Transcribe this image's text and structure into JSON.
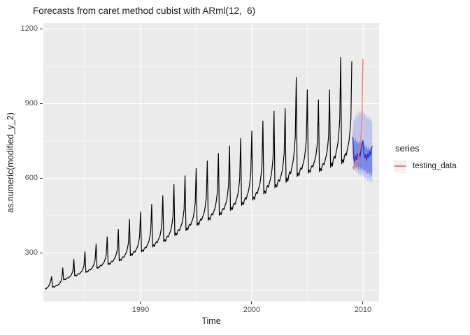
{
  "chart_data": {
    "type": "line",
    "title": "Forecasts from caret method cubist with ARml(12,  6)",
    "xlabel": "Time",
    "ylabel": "as.numeric(modified_y_2)",
    "xlim": [
      1981.26,
      2011.45
    ],
    "ylim": [
      105,
      1223.8
    ],
    "x_tick_values": [
      1990,
      2000,
      2010
    ],
    "x_tick_labels": [
      "1990",
      "2000",
      "2010"
    ],
    "x_minor_ticks": [
      1985,
      1995,
      2005
    ],
    "y_tick_values": [
      300,
      600,
      900,
      1200
    ],
    "y_tick_labels": [
      "300",
      "600",
      "900",
      "1200"
    ],
    "y_minor_ticks": [
      150,
      450,
      750,
      1050
    ],
    "step": 0.0833333,
    "colors": {
      "panel_bg": "#EBEBEB",
      "grid_major": "#FFFFFF",
      "grid_minor": "#FFFFFF",
      "history": "#000000",
      "forecast": "#3333CC",
      "testing_data": "#F8766D",
      "band_outer": "rgba(80,105,230,0.28)",
      "band_inner": "rgba(60,85,225,0.52)"
    },
    "legend": {
      "title": "series",
      "entries": [
        {
          "label": "testing_data",
          "color": "#F8766D"
        }
      ]
    },
    "bands": [
      {
        "name": "prediction-interval-outer",
        "start": 2009.0833,
        "upper": [
          800,
          836,
          828,
          856,
          842,
          870,
          848,
          876,
          856,
          874,
          860,
          872,
          852,
          864,
          842,
          858,
          836,
          852,
          830,
          846,
          824,
          836
        ],
        "lower": [
          700,
          640,
          628,
          640,
          618,
          632,
          610,
          626,
          606,
          622,
          602,
          618,
          598,
          612,
          592,
          606,
          588,
          602,
          584,
          598,
          580,
          592
        ],
        "color": "rgba(80,105,230,0.28)"
      },
      {
        "name": "prediction-interval-inner",
        "start": 2009.0833,
        "upper": [
          788,
          758,
          746,
          764,
          740,
          758,
          736,
          754,
          732,
          750,
          728,
          746,
          724,
          740,
          718,
          736,
          714,
          732,
          710,
          726,
          706,
          720
        ],
        "lower": [
          738,
          654,
          646,
          660,
          638,
          654,
          634,
          650,
          630,
          646,
          626,
          642,
          622,
          638,
          618,
          634,
          614,
          630,
          610,
          626,
          606,
          618
        ],
        "color": "rgba(60,85,225,0.52)"
      }
    ],
    "series": [
      {
        "name": "history",
        "color": "#000000",
        "width": 1.2,
        "start": 1981.4167,
        "values": [
          158,
          155,
          160,
          163,
          168,
          176,
          186,
          205,
          162,
          165,
          162,
          167,
          170,
          168,
          172,
          175,
          179,
          186,
          196,
          240,
          192,
          195,
          193,
          198,
          200,
          199,
          203,
          206,
          210,
          218,
          228,
          275,
          207,
          211,
          208,
          214,
          217,
          215,
          220,
          224,
          229,
          238,
          250,
          305,
          222,
          227,
          223,
          230,
          234,
          232,
          237,
          242,
          248,
          258,
          272,
          335,
          238,
          243,
          239,
          247,
          251,
          248,
          255,
          260,
          266,
          278,
          294,
          365,
          253,
          259,
          254,
          263,
          267,
          265,
          272,
          278,
          285,
          298,
          315,
          395,
          268,
          275,
          270,
          280,
          285,
          282,
          291,
          297,
          306,
          321,
          342,
          435,
          289,
          296,
          290,
          301,
          307,
          303,
          312,
          319,
          328,
          344,
          366,
          465,
          304,
          312,
          306,
          318,
          323,
          320,
          329,
          337,
          347,
          364,
          388,
          495,
          324,
          333,
          326,
          339,
          345,
          341,
          352,
          360,
          370,
          389,
          415,
          530,
          345,
          354,
          347,
          361,
          368,
          364,
          375,
          385,
          396,
          418,
          446,
          575,
          370,
          380,
          372,
          387,
          394,
          390,
          402,
          412,
          424,
          446,
          475,
          610,
          390,
          400,
          393,
          408,
          416,
          411,
          423,
          433,
          446,
          469,
          500,
          640,
          410,
          421,
          413,
          429,
          437,
          432,
          445,
          455,
          469,
          492,
          524,
          670,
          431,
          442,
          433,
          450,
          458,
          453,
          466,
          477,
          491,
          516,
          549,
          700,
          451,
          462,
          454,
          471,
          479,
          474,
          488,
          499,
          513,
          539,
          573,
          730,
          471,
          483,
          474,
          492,
          500,
          495,
          509,
          521,
          536,
          562,
          598,
          760,
          491,
          503,
          494,
          512,
          522,
          516,
          531,
          543,
          558,
          586,
          622,
          790,
          512,
          525,
          515,
          534,
          544,
          538,
          554,
          567,
          583,
          612,
          651,
          830,
          537,
          550,
          540,
          561,
          571,
          564,
          581,
          595,
          612,
          642,
          683,
          870,
          562,
          575,
          565,
          584,
          594,
          588,
          604,
          617,
          633,
          662,
          701,
          880,
          584,
          601,
          588,
          614,
          627,
          618,
          640,
          657,
          678,
          717,
          769,
          1005,
          607,
          621,
          611,
          632,
          643,
          636,
          653,
          667,
          685,
          717,
          760,
          955,
          621,
          633,
          624,
          642,
          651,
          645,
          660,
          672,
          687,
          714,
          750,
          915,
          627,
          640,
          630,
          650,
          660,
          654,
          670,
          684,
          700,
          731,
          771,
          955,
          644,
          662,
          649,
          676,
          689,
          680,
          703,
          721,
          743,
          784,
          838,
          1085,
          658,
          675,
          663,
          688,
          700,
          692,
          713,
          730,
          751,
          789,
          839,
          1070
        ]
      },
      {
        "name": "forecast",
        "color": "#3333CC",
        "width": 1.4,
        "start": 2009.0833,
        "values": [
          766,
          680,
          668,
          692,
          672,
          700,
          678,
          706,
          688,
          718,
          738,
          752,
          700,
          682,
          695,
          672,
          698,
          684,
          708,
          692,
          716,
          730
        ]
      },
      {
        "name": "testing_data",
        "color": "#F8766D",
        "width": 1.4,
        "start": 2009.0833,
        "values": [
          648,
          637,
          655,
          645,
          672,
          663,
          689,
          706,
          730,
          772,
          830,
          1080
        ]
      }
    ]
  }
}
